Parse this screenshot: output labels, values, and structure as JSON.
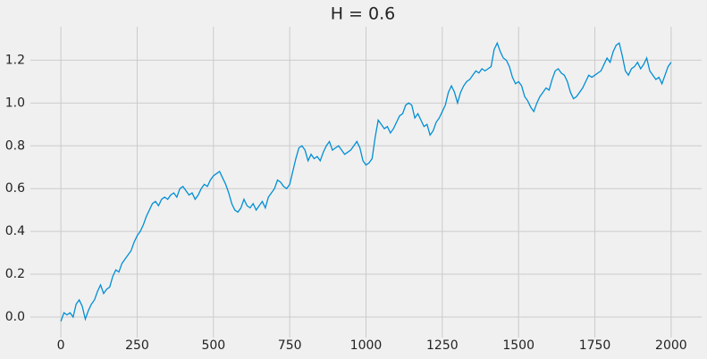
{
  "chart_data": {
    "type": "line",
    "title": "H = 0.6",
    "x": [
      0,
      10,
      20,
      30,
      40,
      50,
      60,
      70,
      80,
      90,
      100,
      110,
      120,
      130,
      140,
      150,
      160,
      170,
      180,
      190,
      200,
      210,
      220,
      230,
      240,
      250,
      260,
      270,
      280,
      290,
      300,
      310,
      320,
      330,
      340,
      350,
      360,
      370,
      380,
      390,
      400,
      410,
      420,
      430,
      440,
      450,
      460,
      470,
      480,
      490,
      500,
      510,
      520,
      530,
      540,
      550,
      560,
      570,
      580,
      590,
      600,
      610,
      620,
      630,
      640,
      650,
      660,
      670,
      680,
      690,
      700,
      710,
      720,
      730,
      740,
      750,
      760,
      770,
      780,
      790,
      800,
      810,
      820,
      830,
      840,
      850,
      860,
      870,
      880,
      890,
      900,
      910,
      920,
      930,
      940,
      950,
      960,
      970,
      980,
      990,
      1000,
      1010,
      1020,
      1030,
      1040,
      1050,
      1060,
      1070,
      1080,
      1090,
      1100,
      1110,
      1120,
      1130,
      1140,
      1150,
      1160,
      1170,
      1180,
      1190,
      1200,
      1210,
      1220,
      1230,
      1240,
      1250,
      1260,
      1270,
      1280,
      1290,
      1300,
      1310,
      1320,
      1330,
      1340,
      1350,
      1360,
      1370,
      1380,
      1390,
      1400,
      1410,
      1420,
      1430,
      1440,
      1450,
      1460,
      1470,
      1480,
      1490,
      1500,
      1510,
      1520,
      1530,
      1540,
      1550,
      1560,
      1570,
      1580,
      1590,
      1600,
      1610,
      1620,
      1630,
      1640,
      1650,
      1660,
      1670,
      1680,
      1690,
      1700,
      1710,
      1720,
      1730,
      1740,
      1750,
      1760,
      1770,
      1780,
      1790,
      1800,
      1810,
      1820,
      1830,
      1840,
      1850,
      1860,
      1870,
      1880,
      1890,
      1900,
      1910,
      1920,
      1930,
      1940,
      1950,
      1960,
      1970,
      1980,
      1990,
      2000
    ],
    "series": [
      {
        "color": "#008fd5",
        "values": [
          -0.02,
          0.02,
          0.01,
          0.02,
          0.0,
          0.06,
          0.08,
          0.05,
          -0.01,
          0.03,
          0.06,
          0.08,
          0.12,
          0.15,
          0.11,
          0.13,
          0.14,
          0.19,
          0.22,
          0.21,
          0.25,
          0.27,
          0.29,
          0.31,
          0.35,
          0.38,
          0.4,
          0.43,
          0.47,
          0.5,
          0.53,
          0.54,
          0.52,
          0.55,
          0.56,
          0.55,
          0.57,
          0.58,
          0.56,
          0.6,
          0.61,
          0.59,
          0.57,
          0.58,
          0.55,
          0.57,
          0.6,
          0.62,
          0.61,
          0.64,
          0.66,
          0.67,
          0.68,
          0.65,
          0.62,
          0.58,
          0.53,
          0.5,
          0.49,
          0.51,
          0.55,
          0.52,
          0.51,
          0.53,
          0.5,
          0.52,
          0.54,
          0.51,
          0.56,
          0.58,
          0.6,
          0.64,
          0.63,
          0.61,
          0.6,
          0.62,
          0.68,
          0.74,
          0.79,
          0.8,
          0.78,
          0.73,
          0.76,
          0.74,
          0.75,
          0.73,
          0.77,
          0.8,
          0.82,
          0.78,
          0.79,
          0.8,
          0.78,
          0.76,
          0.77,
          0.78,
          0.8,
          0.82,
          0.79,
          0.73,
          0.71,
          0.72,
          0.74,
          0.84,
          0.92,
          0.9,
          0.88,
          0.89,
          0.86,
          0.88,
          0.91,
          0.94,
          0.95,
          0.99,
          1.0,
          0.99,
          0.93,
          0.95,
          0.92,
          0.89,
          0.9,
          0.85,
          0.87,
          0.91,
          0.93,
          0.96,
          0.99,
          1.05,
          1.08,
          1.05,
          1.0,
          1.05,
          1.08,
          1.1,
          1.11,
          1.13,
          1.15,
          1.14,
          1.16,
          1.15,
          1.16,
          1.17,
          1.25,
          1.28,
          1.24,
          1.21,
          1.2,
          1.17,
          1.12,
          1.09,
          1.1,
          1.08,
          1.03,
          1.01,
          0.98,
          0.96,
          1.0,
          1.03,
          1.05,
          1.07,
          1.06,
          1.11,
          1.15,
          1.16,
          1.14,
          1.13,
          1.1,
          1.05,
          1.02,
          1.03,
          1.05,
          1.07,
          1.1,
          1.13,
          1.12,
          1.13,
          1.14,
          1.15,
          1.18,
          1.21,
          1.19,
          1.24,
          1.27,
          1.28,
          1.22,
          1.15,
          1.13,
          1.16,
          1.17,
          1.19,
          1.16,
          1.18,
          1.21,
          1.15,
          1.13,
          1.11,
          1.12,
          1.09,
          1.13,
          1.17,
          1.19
        ]
      }
    ],
    "xlim": [
      -100,
      2100
    ],
    "ylim": [
      -0.096,
      1.356
    ],
    "xticks": [
      0,
      250,
      500,
      750,
      1000,
      1250,
      1500,
      1750,
      2000
    ],
    "yticks": [
      {
        "value": 0,
        "label": "0.0"
      },
      0.2,
      0.4,
      0.6,
      0.8,
      {
        "value": 1,
        "label": "1.0"
      },
      1.2
    ],
    "grid": true
  }
}
